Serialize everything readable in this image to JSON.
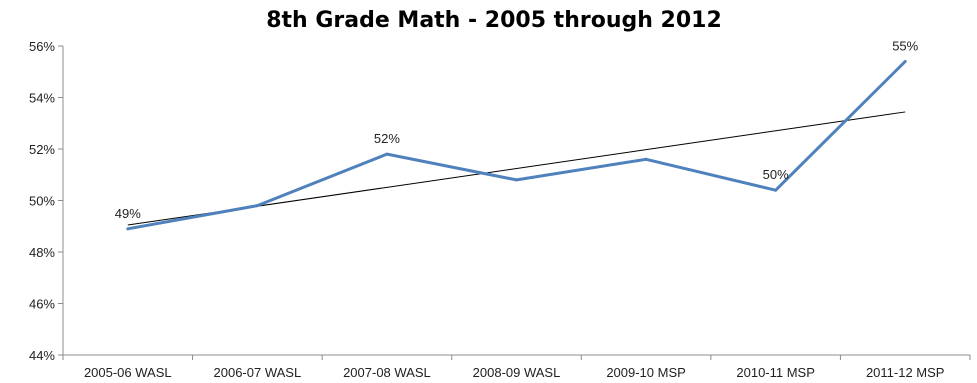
{
  "chart_data": {
    "type": "line",
    "title": "8th Grade Math - 2005 through 2012",
    "xlabel": "",
    "ylabel": "",
    "categories": [
      "2005-06 WASL",
      "2006-07 WASL",
      "2007-08 WASL",
      "2008-09 WASL",
      "2009-10 MSP",
      "2010-11 MSP",
      "2011-12 MSP"
    ],
    "series": [
      {
        "values": [
          48.9,
          49.8,
          51.8,
          50.8,
          51.6,
          50.4,
          55.4
        ],
        "color": "#4f81bd"
      }
    ],
    "trendline": {
      "type": "linear",
      "color": "#000000"
    },
    "data_labels": [
      {
        "index": 0,
        "text": "49%"
      },
      {
        "index": 2,
        "text": "52%"
      },
      {
        "index": 5,
        "text": "50%"
      },
      {
        "index": 6,
        "text": "55%"
      }
    ],
    "y_ticks": [
      "44%",
      "46%",
      "48%",
      "50%",
      "52%",
      "54%",
      "56%"
    ],
    "ylim": [
      44,
      56
    ],
    "grid": false,
    "legend": "none"
  }
}
